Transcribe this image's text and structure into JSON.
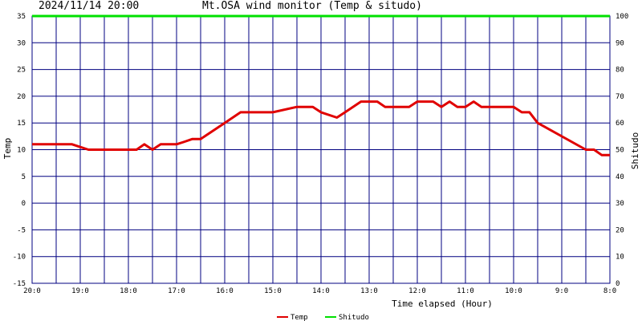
{
  "header": {
    "timestamp": "2024/11/14 20:00",
    "title": "Mt.OSA wind monitor (Temp & situdo)"
  },
  "colors": {
    "background": "#ffffff",
    "grid": "#000080",
    "temp": "#e00000",
    "shitudo": "#00e000"
  },
  "chart_data": {
    "type": "line",
    "title": "Mt.OSA wind monitor (Temp & situdo)",
    "xlabel": "Time elapsed (Hour)",
    "ylabel": "Temp",
    "y2label": "Shitudo",
    "ylim": [
      -15,
      35
    ],
    "y2lim": [
      0,
      100
    ],
    "xlim": [
      0,
      12
    ],
    "yticks": [
      "35",
      "30",
      "25",
      "20",
      "15",
      "10",
      "5",
      "0",
      "-5",
      "-10",
      "-15"
    ],
    "y2ticks": [
      "100",
      "90",
      "80",
      "70",
      "60",
      "50",
      "40",
      "30",
      "20",
      "10",
      "0"
    ],
    "xtick_values": [
      0,
      1,
      2,
      3,
      4,
      5,
      6,
      7,
      8,
      9,
      10,
      11,
      12
    ],
    "xticks": [
      "20:0",
      "19:0",
      "18:0",
      "17:0",
      "16:0",
      "15:0",
      "14:0",
      "13:0",
      "12:0",
      "11:0",
      "10:0",
      "9:0",
      "8:0"
    ],
    "grid": true,
    "legend_position": "bottom-center",
    "series": [
      {
        "name": "Temp",
        "axis": "left",
        "color": "#e00000",
        "x": [
          0,
          0.83,
          1.0,
          1.17,
          2.0,
          2.17,
          2.33,
          2.5,
          2.67,
          3.0,
          3.17,
          3.33,
          3.5,
          4.0,
          4.33,
          4.67,
          5.0,
          5.5,
          5.83,
          6.0,
          6.33,
          6.5,
          6.83,
          7.0,
          7.17,
          7.33,
          7.5,
          7.83,
          8.0,
          8.33,
          8.5,
          8.67,
          8.83,
          9.0,
          9.17,
          9.33,
          9.5,
          9.67,
          10.0,
          10.17,
          10.33,
          10.5,
          11.5,
          11.67,
          11.83,
          12.0
        ],
        "values": [
          11,
          11,
          10.5,
          10,
          10,
          10,
          11,
          10,
          11,
          11,
          11.5,
          12,
          12,
          15,
          17,
          17,
          17,
          18,
          18,
          17,
          16,
          17,
          19,
          19,
          19,
          18,
          18,
          18,
          19,
          19,
          18,
          19,
          18,
          18,
          19,
          18,
          18,
          18,
          18,
          17,
          17,
          15,
          10,
          10,
          9,
          9
        ]
      },
      {
        "name": "Shitudo",
        "axis": "right",
        "color": "#00e000",
        "x": [
          0,
          12
        ],
        "values": [
          100,
          100
        ]
      }
    ]
  }
}
